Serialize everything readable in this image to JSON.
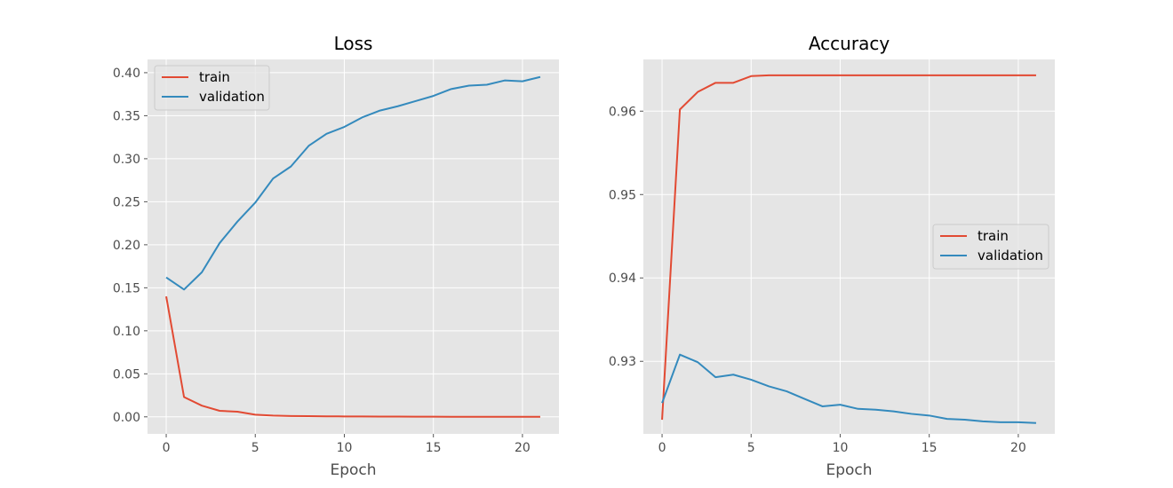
{
  "chart_data": [
    {
      "type": "line",
      "title": "Loss",
      "xlabel": "Epoch",
      "ylabel": "",
      "xlim": [
        -1.05,
        22.05
      ],
      "ylim": [
        -0.0198,
        0.4154
      ],
      "xticks": [
        0,
        5,
        10,
        15,
        20
      ],
      "yticks": [
        0.0,
        0.05,
        0.1,
        0.15,
        0.2,
        0.25,
        0.3,
        0.35,
        0.4
      ],
      "ytick_labels": [
        "0.00",
        "0.05",
        "0.10",
        "0.15",
        "0.20",
        "0.25",
        "0.30",
        "0.35",
        "0.40"
      ],
      "grid": true,
      "legend": "top-left",
      "x": [
        0,
        1,
        2,
        3,
        4,
        5,
        6,
        7,
        8,
        9,
        10,
        11,
        12,
        13,
        14,
        15,
        16,
        17,
        18,
        19,
        20,
        21
      ],
      "series": [
        {
          "name": "train",
          "color": "#e24a33",
          "values": [
            0.14,
            0.023,
            0.013,
            0.007,
            0.006,
            0.0025,
            0.0015,
            0.001,
            0.0008,
            0.0006,
            0.0005,
            0.0004,
            0.0003,
            0.00025,
            0.0002,
            0.00015,
            0.0001,
            0.0001,
            0.0001,
            0.0001,
            0.0001,
            0.0001
          ]
        },
        {
          "name": "validation",
          "color": "#348abd",
          "values": [
            0.162,
            0.148,
            0.168,
            0.202,
            0.227,
            0.249,
            0.277,
            0.291,
            0.315,
            0.329,
            0.337,
            0.348,
            0.356,
            0.361,
            0.367,
            0.373,
            0.381,
            0.385,
            0.386,
            0.391,
            0.39,
            0.395
          ]
        }
      ]
    },
    {
      "type": "line",
      "title": "Accuracy",
      "xlabel": "Epoch",
      "ylabel": "",
      "xlim": [
        -1.05,
        22.05
      ],
      "ylim": [
        0.9213,
        0.9662
      ],
      "xticks": [
        0,
        5,
        10,
        15,
        20
      ],
      "yticks": [
        0.93,
        0.94,
        0.95,
        0.96
      ],
      "ytick_labels": [
        "0.93",
        "0.94",
        "0.95",
        "0.96"
      ],
      "grid": true,
      "legend": "center-right",
      "x": [
        0,
        1,
        2,
        3,
        4,
        5,
        6,
        7,
        8,
        9,
        10,
        11,
        12,
        13,
        14,
        15,
        16,
        17,
        18,
        19,
        20,
        21
      ],
      "series": [
        {
          "name": "train",
          "color": "#e24a33",
          "values": [
            0.923,
            0.9602,
            0.9623,
            0.9634,
            0.9634,
            0.9642,
            0.9643,
            0.9643,
            0.9643,
            0.9643,
            0.9643,
            0.9643,
            0.9643,
            0.9643,
            0.9643,
            0.9643,
            0.9643,
            0.9643,
            0.9643,
            0.9643,
            0.9643,
            0.9643
          ]
        },
        {
          "name": "validation",
          "color": "#348abd",
          "values": [
            0.925,
            0.9308,
            0.9299,
            0.9281,
            0.9284,
            0.9278,
            0.927,
            0.9264,
            0.9255,
            0.9246,
            0.9248,
            0.9243,
            0.9242,
            0.924,
            0.9237,
            0.9235,
            0.9231,
            0.923,
            0.9228,
            0.9227,
            0.9227,
            0.9226
          ]
        }
      ]
    }
  ]
}
